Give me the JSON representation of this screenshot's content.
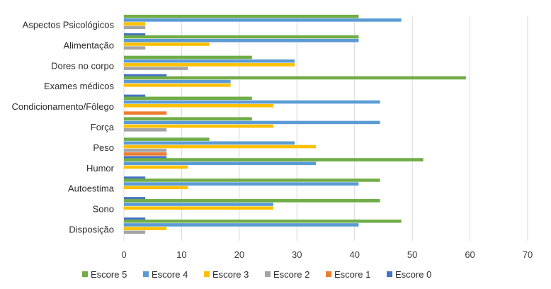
{
  "chart_data": {
    "type": "bar",
    "orientation": "horizontal",
    "categories": [
      "Aspectos Psicológicos",
      "Alimentação",
      "Dores  no  corpo",
      "Exames médicos",
      "Condicionamento/Fôlego",
      "Força",
      "Peso",
      "Humor",
      "Autoestima",
      "Sono",
      "Disposição"
    ],
    "series": [
      {
        "name": "Escore 5",
        "color": "#70ad47",
        "values": [
          40.7,
          40.7,
          22.2,
          59.3,
          22.2,
          22.2,
          14.8,
          51.9,
          44.4,
          44.4,
          48.1
        ]
      },
      {
        "name": "Escore 4",
        "color": "#5b9bd5",
        "values": [
          48.1,
          40.7,
          29.6,
          18.5,
          44.4,
          44.4,
          29.6,
          33.3,
          40.7,
          25.9,
          40.7
        ]
      },
      {
        "name": "Escore 3",
        "color": "#ffc000",
        "values": [
          3.7,
          14.8,
          29.6,
          18.5,
          25.9,
          25.9,
          33.3,
          11.1,
          11.1,
          25.9,
          7.4
        ]
      },
      {
        "name": "Escore 2",
        "color": "#a5a5a5",
        "values": [
          3.7,
          3.7,
          11.1,
          0,
          0,
          7.4,
          7.4,
          0,
          0,
          0,
          3.7
        ]
      },
      {
        "name": "Escore 1",
        "color": "#ed7d31",
        "values": [
          0,
          0,
          0,
          0,
          7.4,
          0,
          7.4,
          0,
          0,
          0,
          0
        ]
      },
      {
        "name": "Escore 0",
        "color": "#4472c4",
        "values": [
          3.7,
          0,
          7.4,
          3.7,
          0,
          0,
          7.4,
          3.7,
          3.7,
          3.7,
          0
        ]
      }
    ],
    "xlim": [
      0,
      70
    ],
    "xticks": [
      0,
      10,
      20,
      30,
      40,
      50,
      60,
      70
    ],
    "grid": "vertical",
    "legend": "bottom"
  }
}
